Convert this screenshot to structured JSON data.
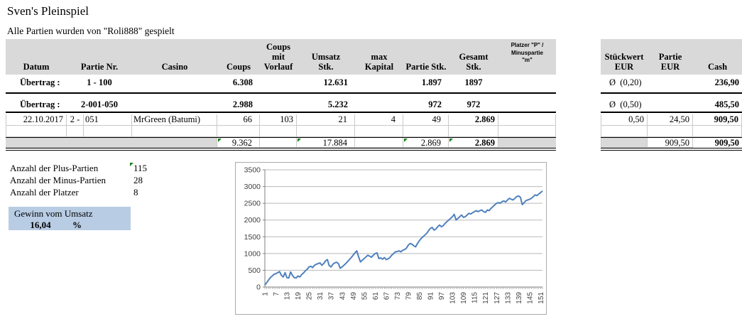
{
  "title": "Sven's Pleinspiel",
  "subtitle": "Alle Partien wurden von \"Roli888\" gespielt",
  "table": {
    "headers": {
      "datum": "Datum",
      "partie_nr": "Partie Nr.",
      "casino": "Casino",
      "coups": "Coups",
      "coups_mit_vorlauf": "Coups mit\nVorlauf",
      "umsatz": "Umsatz\nStk.",
      "max_kapital": "max\nKapital",
      "partie_stk": "Partie Stk.",
      "gesamt_stk": "Gesamt\nStk.",
      "platzer": "Platzer \"P\" /\nMinuspartie\n\"m\"",
      "stueckwert": "Stückwert\nEUR",
      "partie_eur": "Partie\nEUR",
      "cash": "Cash"
    },
    "uebertrag1": {
      "label": "Übertrag :",
      "range": "1 - 100",
      "coups": "6.308",
      "umsatz": "12.631",
      "partie_stk": "1.897",
      "gesamt_stk": "1897",
      "stueckwert": "Ø  (0,20)",
      "cash": "236,90"
    },
    "uebertrag2": {
      "label": "Übertrag :",
      "range": "2-001-050",
      "coups": "2.988",
      "umsatz": "5.232",
      "partie_stk": "972",
      "gesamt_stk": "972",
      "stueckwert": "Ø  (0,50)",
      "cash": "485,50"
    },
    "detail": {
      "datum": "22.10.2017",
      "partie_prefix": "2 -",
      "partie_nr": "051",
      "casino": "MrGreen (Batumi)",
      "coups": "66",
      "coups_mit_vorlauf": "103",
      "umsatz": "21",
      "max_kapital": "4",
      "partie_stk": "49",
      "gesamt_stk": "2.869",
      "stueckwert": "0,50",
      "partie_eur": "24,50",
      "cash": "909,50"
    },
    "totals": {
      "coups": "9.362",
      "umsatz": "17.884",
      "partie_stk": "2.869",
      "gesamt_stk": "2.869",
      "partie_eur": "909,50",
      "cash": "909,50"
    }
  },
  "stats": {
    "rows": [
      {
        "label": "Anzahl der Plus-Partien",
        "value": "115"
      },
      {
        "label": "Anzahl der Minus-Partien",
        "value": "28"
      },
      {
        "label": "Anzahl der Platzer",
        "value": "8"
      }
    ],
    "gewinn_label": "Gewinn vom Umsatz",
    "gewinn_value": "16,04",
    "gewinn_unit": "%"
  },
  "colors": {
    "header_fill": "#d9d9d9",
    "highlight_fill": "#b8cce4",
    "line_color": "#4f81bd",
    "flag_green": "#1e7e1e"
  },
  "chart_data": {
    "type": "line",
    "title": "",
    "xlabel": "",
    "ylabel": "",
    "ylim": [
      0,
      3500
    ],
    "y_ticks": [
      0,
      500,
      1000,
      1500,
      2000,
      2500,
      3000,
      3500
    ],
    "x_tick_labels": [
      "1",
      "7",
      "13",
      "19",
      "25",
      "31",
      "37",
      "43",
      "49",
      "55",
      "61",
      "67",
      "73",
      "79",
      "85",
      "91",
      "97",
      "103",
      "109",
      "115",
      "121",
      "127",
      "133",
      "139",
      "145",
      "151"
    ],
    "x_tick_step": 6,
    "grid": true,
    "legend": false,
    "line_color": "#4f81bd",
    "values": [
      60,
      130,
      210,
      280,
      330,
      380,
      400,
      430,
      460,
      350,
      300,
      430,
      280,
      270,
      450,
      350,
      280,
      270,
      330,
      300,
      370,
      420,
      480,
      530,
      600,
      620,
      580,
      650,
      680,
      700,
      720,
      650,
      700,
      780,
      820,
      640,
      600,
      680,
      720,
      740,
      700,
      560,
      600,
      650,
      700,
      760,
      820,
      880,
      950,
      1020,
      1080,
      900,
      750,
      800,
      850,
      900,
      950,
      920,
      890,
      950,
      1000,
      1020,
      850,
      870,
      830,
      880,
      820,
      840,
      880,
      950,
      1000,
      1050,
      1060,
      1080,
      1050,
      1100,
      1120,
      1160,
      1250,
      1300,
      1280,
      1230,
      1200,
      1300,
      1380,
      1450,
      1500,
      1550,
      1600,
      1680,
      1750,
      1780,
      1700,
      1730,
      1800,
      1850,
      1800,
      1830,
      1900,
      1950,
      2000,
      2050,
      2100,
      2170,
      2000,
      2050,
      2100,
      2150,
      2080,
      2100,
      2150,
      2200,
      2180,
      2220,
      2250,
      2280,
      2250,
      2280,
      2300,
      2250,
      2230,
      2300,
      2280,
      2350,
      2400,
      2450,
      2500,
      2520,
      2500,
      2550,
      2570,
      2540,
      2600,
      2650,
      2620,
      2600,
      2650,
      2700,
      2720,
      2680,
      2460,
      2520,
      2580,
      2600,
      2620,
      2650,
      2700,
      2750,
      2730,
      2780,
      2820,
      2869
    ]
  }
}
